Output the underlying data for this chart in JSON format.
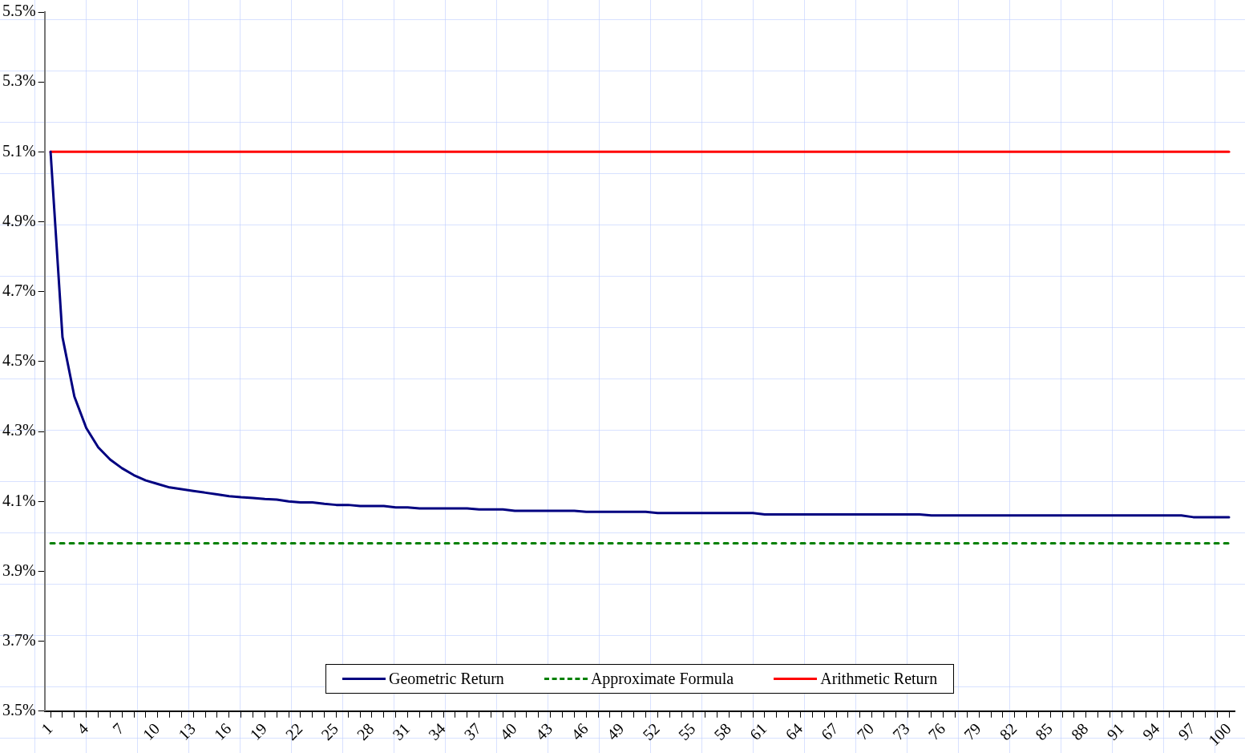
{
  "chart_data": {
    "type": "line",
    "categories": [
      "1",
      null,
      null,
      "4",
      null,
      null,
      "7",
      null,
      null,
      "10",
      null,
      null,
      "13",
      null,
      null,
      "16",
      null,
      null,
      "19",
      null,
      null,
      "22",
      null,
      null,
      "25",
      null,
      null,
      "28",
      null,
      null,
      "31",
      null,
      null,
      "34",
      null,
      null,
      "37",
      null,
      null,
      "40",
      null,
      null,
      "43",
      null,
      null,
      "46",
      null,
      null,
      "49",
      null,
      null,
      "52",
      null,
      null,
      "55",
      null,
      null,
      "58",
      null,
      null,
      "61",
      null,
      null,
      "64",
      null,
      null,
      "67",
      null,
      null,
      "70",
      null,
      null,
      "73",
      null,
      null,
      "76",
      null,
      null,
      "79",
      null,
      null,
      "82",
      null,
      null,
      "85",
      null,
      null,
      "88",
      null,
      null,
      "91",
      null,
      null,
      "94",
      null,
      null,
      "97",
      null,
      null,
      "100"
    ],
    "series": [
      {
        "name": "Geometric Return",
        "color": "#000080",
        "line_style": "solid",
        "values": [
          5.1,
          4.57,
          4.4,
          4.31,
          4.255,
          4.22,
          4.195,
          4.175,
          4.16,
          4.15,
          4.14,
          4.135,
          4.13,
          4.125,
          4.12,
          4.115,
          4.112,
          4.11,
          4.107,
          4.105,
          4.1,
          4.097,
          4.097,
          4.093,
          4.09,
          4.09,
          4.087,
          4.087,
          4.087,
          4.083,
          4.083,
          4.08,
          4.08,
          4.08,
          4.08,
          4.08,
          4.077,
          4.077,
          4.077,
          4.073,
          4.073,
          4.073,
          4.073,
          4.073,
          4.073,
          4.07,
          4.07,
          4.07,
          4.07,
          4.07,
          4.07,
          4.067,
          4.067,
          4.067,
          4.067,
          4.067,
          4.067,
          4.067,
          4.067,
          4.067,
          4.063,
          4.063,
          4.063,
          4.063,
          4.063,
          4.063,
          4.063,
          4.063,
          4.063,
          4.063,
          4.063,
          4.063,
          4.063,
          4.063,
          4.06,
          4.06,
          4.06,
          4.06,
          4.06,
          4.06,
          4.06,
          4.06,
          4.06,
          4.06,
          4.06,
          4.06,
          4.06,
          4.06,
          4.06,
          4.06,
          4.06,
          4.06,
          4.06,
          4.06,
          4.06,
          4.06,
          4.055,
          4.055,
          4.055,
          4.055
        ]
      },
      {
        "name": "Approximate Formula",
        "color": "#008000",
        "line_style": "dashed",
        "values": [
          3.98,
          3.98,
          3.98,
          3.98,
          3.98,
          3.98,
          3.98,
          3.98,
          3.98,
          3.98,
          3.98,
          3.98,
          3.98,
          3.98,
          3.98,
          3.98,
          3.98,
          3.98,
          3.98,
          3.98,
          3.98,
          3.98,
          3.98,
          3.98,
          3.98,
          3.98,
          3.98,
          3.98,
          3.98,
          3.98,
          3.98,
          3.98,
          3.98,
          3.98,
          3.98,
          3.98,
          3.98,
          3.98,
          3.98,
          3.98,
          3.98,
          3.98,
          3.98,
          3.98,
          3.98,
          3.98,
          3.98,
          3.98,
          3.98,
          3.98,
          3.98,
          3.98,
          3.98,
          3.98,
          3.98,
          3.98,
          3.98,
          3.98,
          3.98,
          3.98,
          3.98,
          3.98,
          3.98,
          3.98,
          3.98,
          3.98,
          3.98,
          3.98,
          3.98,
          3.98,
          3.98,
          3.98,
          3.98,
          3.98,
          3.98,
          3.98,
          3.98,
          3.98,
          3.98,
          3.98,
          3.98,
          3.98,
          3.98,
          3.98,
          3.98,
          3.98,
          3.98,
          3.98,
          3.98,
          3.98,
          3.98,
          3.98,
          3.98,
          3.98,
          3.98,
          3.98,
          3.98,
          3.98,
          3.98,
          3.98
        ]
      },
      {
        "name": "Arithmetic Return",
        "color": "#ff0000",
        "line_style": "solid",
        "values": [
          5.1,
          5.1,
          5.1,
          5.1,
          5.1,
          5.1,
          5.1,
          5.1,
          5.1,
          5.1,
          5.1,
          5.1,
          5.1,
          5.1,
          5.1,
          5.1,
          5.1,
          5.1,
          5.1,
          5.1,
          5.1,
          5.1,
          5.1,
          5.1,
          5.1,
          5.1,
          5.1,
          5.1,
          5.1,
          5.1,
          5.1,
          5.1,
          5.1,
          5.1,
          5.1,
          5.1,
          5.1,
          5.1,
          5.1,
          5.1,
          5.1,
          5.1,
          5.1,
          5.1,
          5.1,
          5.1,
          5.1,
          5.1,
          5.1,
          5.1,
          5.1,
          5.1,
          5.1,
          5.1,
          5.1,
          5.1,
          5.1,
          5.1,
          5.1,
          5.1,
          5.1,
          5.1,
          5.1,
          5.1,
          5.1,
          5.1,
          5.1,
          5.1,
          5.1,
          5.1,
          5.1,
          5.1,
          5.1,
          5.1,
          5.1,
          5.1,
          5.1,
          5.1,
          5.1,
          5.1,
          5.1,
          5.1,
          5.1,
          5.1,
          5.1,
          5.1,
          5.1,
          5.1,
          5.1,
          5.1,
          5.1,
          5.1,
          5.1,
          5.1,
          5.1,
          5.1,
          5.1,
          5.1,
          5.1,
          5.1
        ]
      }
    ],
    "ylim": [
      3.5,
      5.5
    ],
    "yticks": [
      {
        "value": 3.5,
        "label": "3.5%"
      },
      {
        "value": 3.7,
        "label": "3.7%"
      },
      {
        "value": 3.9,
        "label": "3.9%"
      },
      {
        "value": 4.1,
        "label": "4.1%"
      },
      {
        "value": 4.3,
        "label": "4.3%"
      },
      {
        "value": 4.5,
        "label": "4.5%"
      },
      {
        "value": 4.7,
        "label": "4.7%"
      },
      {
        "value": 4.9,
        "label": "4.9%"
      },
      {
        "value": 5.1,
        "label": "5.1%"
      },
      {
        "value": 5.3,
        "label": "5.3%"
      },
      {
        "value": 5.5,
        "label": "5.5%"
      }
    ],
    "legend": "bottom",
    "marker": "none",
    "grid": false
  }
}
